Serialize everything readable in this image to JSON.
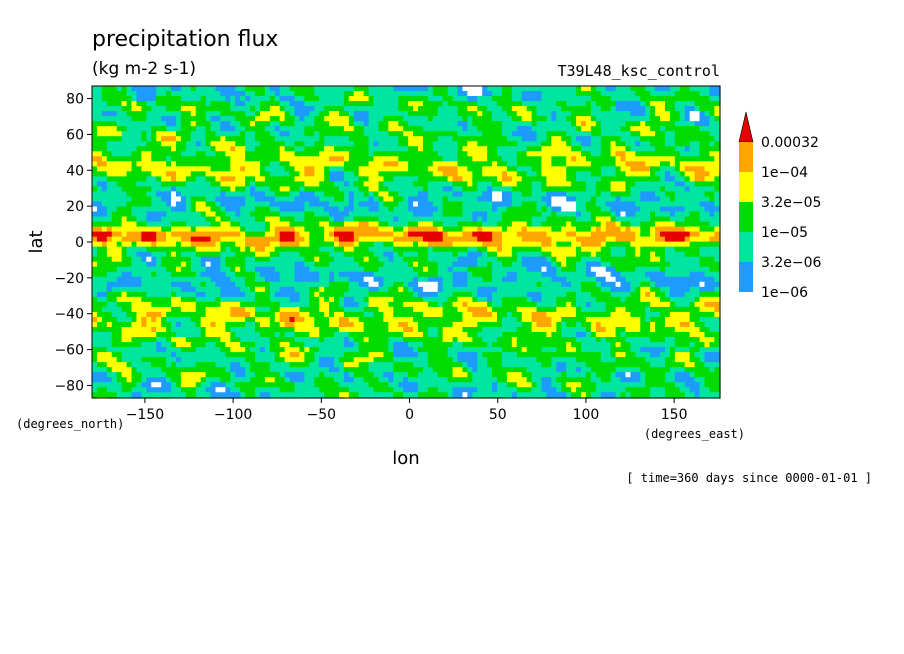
{
  "chart_data": {
    "type": "heatmap",
    "title": "precipitation flux",
    "units": "(kg m-2 s-1)",
    "dataset": "T39L48_ksc_control",
    "xlabel": "lon",
    "ylabel": "lat",
    "x_unit_label": "(degrees_east)",
    "y_unit_label": "(degrees_north)",
    "time_label": "[ time=360 days since 0000-01-01 ]",
    "xlim": [
      -180,
      176
    ],
    "ylim": [
      -87,
      87
    ],
    "x_ticks": [
      -150,
      -100,
      -50,
      0,
      50,
      100,
      150
    ],
    "y_ticks": [
      -80,
      -60,
      -40,
      -20,
      0,
      20,
      40,
      60,
      80
    ],
    "levels": [
      {
        "label": "1e-06",
        "value": 1e-06,
        "color": "#1e9bff"
      },
      {
        "label": "3.2e-06",
        "value": 3.2e-06,
        "color": "#00e6a0"
      },
      {
        "label": "1e-05",
        "value": 1e-05,
        "color": "#00dc00"
      },
      {
        "label": "3.2e-05",
        "value": 3.2e-05,
        "color": "#ffff00"
      },
      {
        "label": "1e-04",
        "value": 0.0001,
        "color": "#ffa500"
      },
      {
        "label": "0.00032",
        "value": 0.00032,
        "color": "#e60000"
      }
    ],
    "below_color": "#ffffff",
    "colormap_note_colors": [
      "#ffffff",
      "#1e9bff",
      "#00e6a0",
      "#00dc00",
      "#ffff00",
      "#ffa500",
      "#e60000"
    ],
    "grid": false,
    "legend": "right"
  }
}
